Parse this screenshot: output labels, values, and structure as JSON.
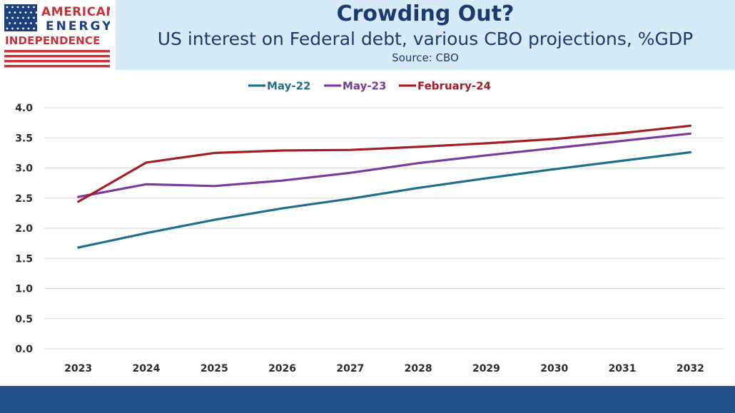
{
  "header": {
    "logo_lines": [
      "AMERICAN",
      "ENERGY",
      "INDEPENDENCE"
    ],
    "title": "Crowding Out?",
    "subtitle": "US interest on Federal debt, various CBO projections, %GDP",
    "source": "Source: CBO"
  },
  "colors": {
    "title_band": "#d6eaf8",
    "title_text": "#1b3a70",
    "footer_bar": "#24538a",
    "logo_red": "#c8323a",
    "logo_blue": "#1c3f7e",
    "grid": "#d9d9d9"
  },
  "chart_data": {
    "type": "line",
    "categories": [
      "2023",
      "2024",
      "2025",
      "2026",
      "2027",
      "2028",
      "2029",
      "2030",
      "2031",
      "2032"
    ],
    "series": [
      {
        "name": "May-22",
        "color": "#1f6e8c",
        "values": [
          1.68,
          1.92,
          2.14,
          2.33,
          2.49,
          2.67,
          2.83,
          2.98,
          3.12,
          3.26
        ]
      },
      {
        "name": "May-23",
        "color": "#7b3a9e",
        "values": [
          2.52,
          2.73,
          2.7,
          2.79,
          2.92,
          3.08,
          3.21,
          3.33,
          3.45,
          3.57
        ]
      },
      {
        "name": "February-24",
        "color": "#a31d24",
        "values": [
          2.44,
          3.09,
          3.25,
          3.29,
          3.3,
          3.35,
          3.41,
          3.48,
          3.58,
          3.7
        ]
      }
    ],
    "y_ticks": [
      "0.0",
      "0.5",
      "1.0",
      "1.5",
      "2.0",
      "2.5",
      "3.0",
      "3.5",
      "4.0"
    ],
    "ylim": [
      0,
      4
    ],
    "grid": true,
    "legend_position": "top-center"
  }
}
